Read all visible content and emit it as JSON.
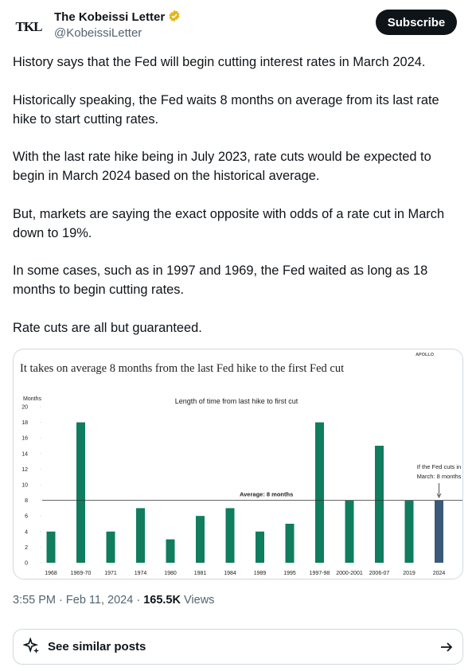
{
  "author": {
    "logo": "TKL",
    "name": "The Kobeissi Letter",
    "handle": "@KobeissiLetter"
  },
  "subscribe": "Subscribe",
  "paragraphs": [
    "History says that the Fed will begin cutting interest rates in March 2024.",
    "Historically speaking, the Fed waits 8 months on average from its last rate hike to start cutting rates.",
    "With the last rate hike being in July 2023, rate cuts would be expected to begin in March 2024 based on the historical average.",
    "But, markets are saying the exact opposite with odds of a rate cut in March down to 19%.",
    "In some cases, such as in 1997 and 1969, the Fed waited as long as 18 months to begin cutting rates.",
    "Rate cuts are all but guaranteed."
  ],
  "meta": {
    "time": "3:55 PM",
    "separator": "·",
    "date": "Feb 11, 2024",
    "views": "165.5K",
    "views_label": "Views"
  },
  "similar": "See similar posts",
  "chart_data": {
    "type": "bar",
    "title": "It takes on average 8 months from the last Fed hike to the first Fed cut",
    "brand": "APOLLO",
    "subtitle": "Length of time from last hike to first cut",
    "y_label": "Months",
    "categories": [
      "1968",
      "1969-70",
      "1971",
      "1974",
      "1980",
      "1981",
      "1984",
      "1989",
      "1995",
      "1997-98",
      "2000-2001",
      "2006-07",
      "2019",
      "2024"
    ],
    "values": [
      4,
      18,
      4,
      7,
      3,
      6,
      7,
      4,
      5,
      18,
      8,
      15,
      8,
      8
    ],
    "colors": [
      "#0f7d5e",
      "#0f7d5e",
      "#0f7d5e",
      "#0f7d5e",
      "#0f7d5e",
      "#0f7d5e",
      "#0f7d5e",
      "#0f7d5e",
      "#0f7d5e",
      "#0f7d5e",
      "#0f7d5e",
      "#0f7d5e",
      "#0f7d5e",
      "#3b5a7a"
    ],
    "ylim": [
      0,
      20
    ],
    "yticks": [
      0,
      2,
      4,
      6,
      8,
      10,
      12,
      14,
      16,
      18,
      20
    ],
    "average": {
      "value": 8,
      "label": "Average: 8 months"
    },
    "annotation": [
      "If the Fed cuts in",
      "March: 8 months"
    ]
  }
}
